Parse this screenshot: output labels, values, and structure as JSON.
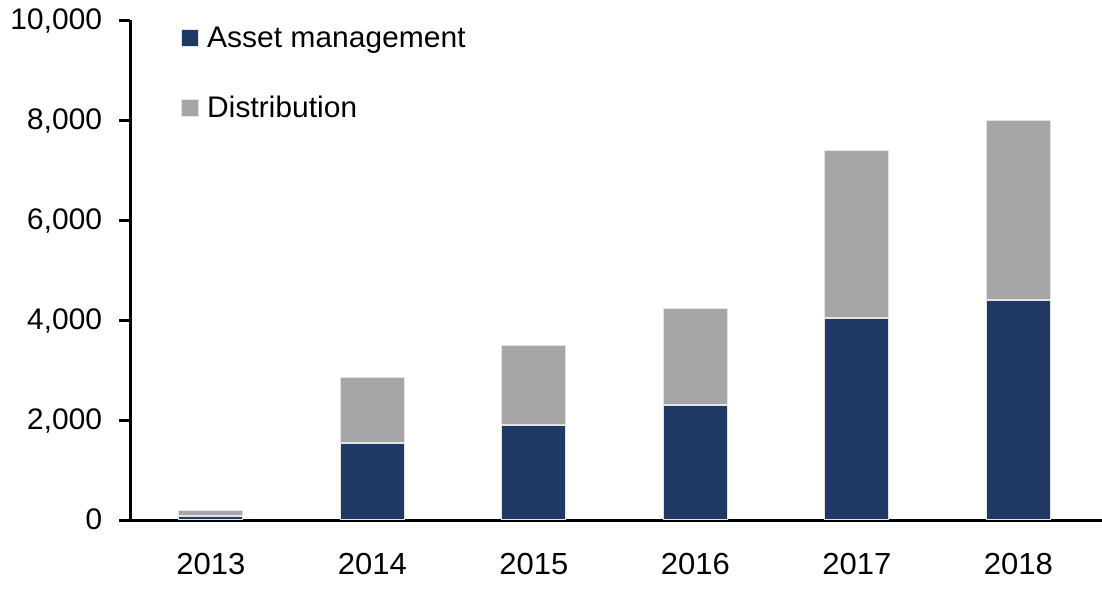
{
  "chart_data": {
    "type": "bar",
    "stacked": true,
    "title": "",
    "xlabel": "",
    "ylabel": "",
    "categories": [
      "2013",
      "2014",
      "2015",
      "2016",
      "2017",
      "2018"
    ],
    "series": [
      {
        "name": "Asset management",
        "color": "#1F3864",
        "values": [
          90,
          1550,
          1900,
          2300,
          4050,
          4400
        ]
      },
      {
        "name": "Distribution",
        "color": "#A6A6A6",
        "values": [
          110,
          1320,
          1600,
          1950,
          3350,
          3600
        ]
      }
    ],
    "totals": [
      200,
      2870,
      3500,
      4250,
      7400,
      8000
    ],
    "ylim": [
      0,
      10000
    ],
    "ytick_interval": 2000,
    "yticks": [
      0,
      2000,
      4000,
      6000,
      8000,
      10000
    ],
    "ytick_labels": [
      "0",
      "2,000",
      "4,000",
      "6,000",
      "8,000",
      "10,000"
    ],
    "grid": false,
    "legend_position": "top-left",
    "axis_color": "#000000",
    "bar_border_color": "#e4e4e4"
  },
  "legend": {
    "items": [
      {
        "label": "Asset management",
        "color": "#1F3864"
      },
      {
        "label": "Distribution",
        "color": "#A6A6A6"
      }
    ]
  }
}
